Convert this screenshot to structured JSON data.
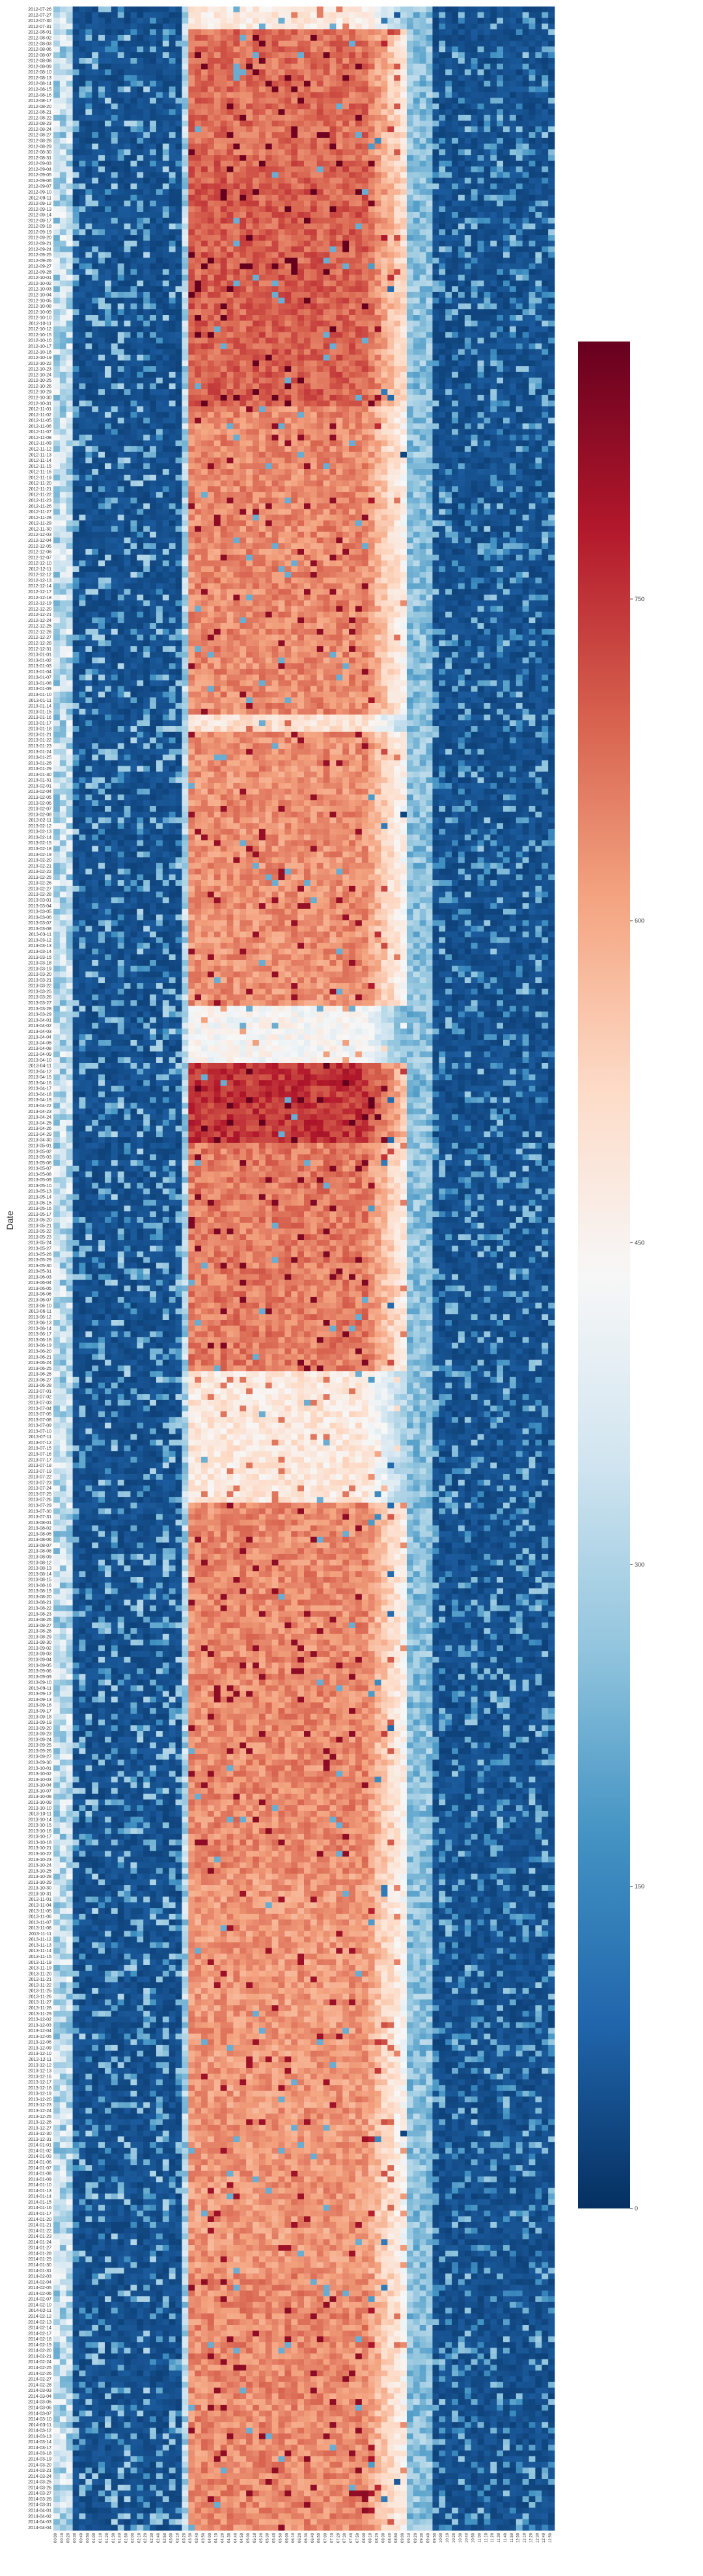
{
  "chart_data": {
    "type": "heatmap",
    "ylabel": "Date",
    "xlabel": "",
    "colormap": "RdBu_r",
    "colorbar": {
      "min": 0,
      "max": 870,
      "ticks": [
        0,
        150,
        300,
        450,
        600,
        750
      ]
    },
    "row_range": {
      "first": "2012-07-26",
      "last": "2014-04-04",
      "labeled_every_n_business_days": 1
    },
    "column_count": 78,
    "profile_breaks": {
      "dark_start_col": 3,
      "hot_start_col": 21,
      "hot_end_col": 54,
      "cool_end_col": 58
    },
    "band_levels": [
      {
        "from": "2012-07-26",
        "to": "2012-07-31",
        "level": 0.55
      },
      {
        "from": "2012-08-01",
        "to": "2012-08-31",
        "level": 0.78
      },
      {
        "from": "2012-09-01",
        "to": "2012-10-31",
        "level": 0.8
      },
      {
        "from": "2012-11-01",
        "to": "2013-01-15",
        "level": 0.74
      },
      {
        "from": "2013-01-16",
        "to": "2013-01-18",
        "level": 0.58
      },
      {
        "from": "2013-01-19",
        "to": "2013-03-27",
        "level": 0.73
      },
      {
        "from": "2013-03-28",
        "to": "2013-04-10",
        "level": 0.5
      },
      {
        "from": "2013-04-11",
        "to": "2013-04-30",
        "level": 0.86
      },
      {
        "from": "2013-05-01",
        "to": "2013-06-25",
        "level": 0.76
      },
      {
        "from": "2013-06-26",
        "to": "2013-07-26",
        "level": 0.56
      },
      {
        "from": "2013-07-29",
        "to": "2013-10-25",
        "level": 0.74
      },
      {
        "from": "2013-10-28",
        "to": "2014-01-31",
        "level": 0.72
      },
      {
        "from": "2014-02-01",
        "to": "2014-04-04",
        "level": 0.74
      }
    ]
  }
}
